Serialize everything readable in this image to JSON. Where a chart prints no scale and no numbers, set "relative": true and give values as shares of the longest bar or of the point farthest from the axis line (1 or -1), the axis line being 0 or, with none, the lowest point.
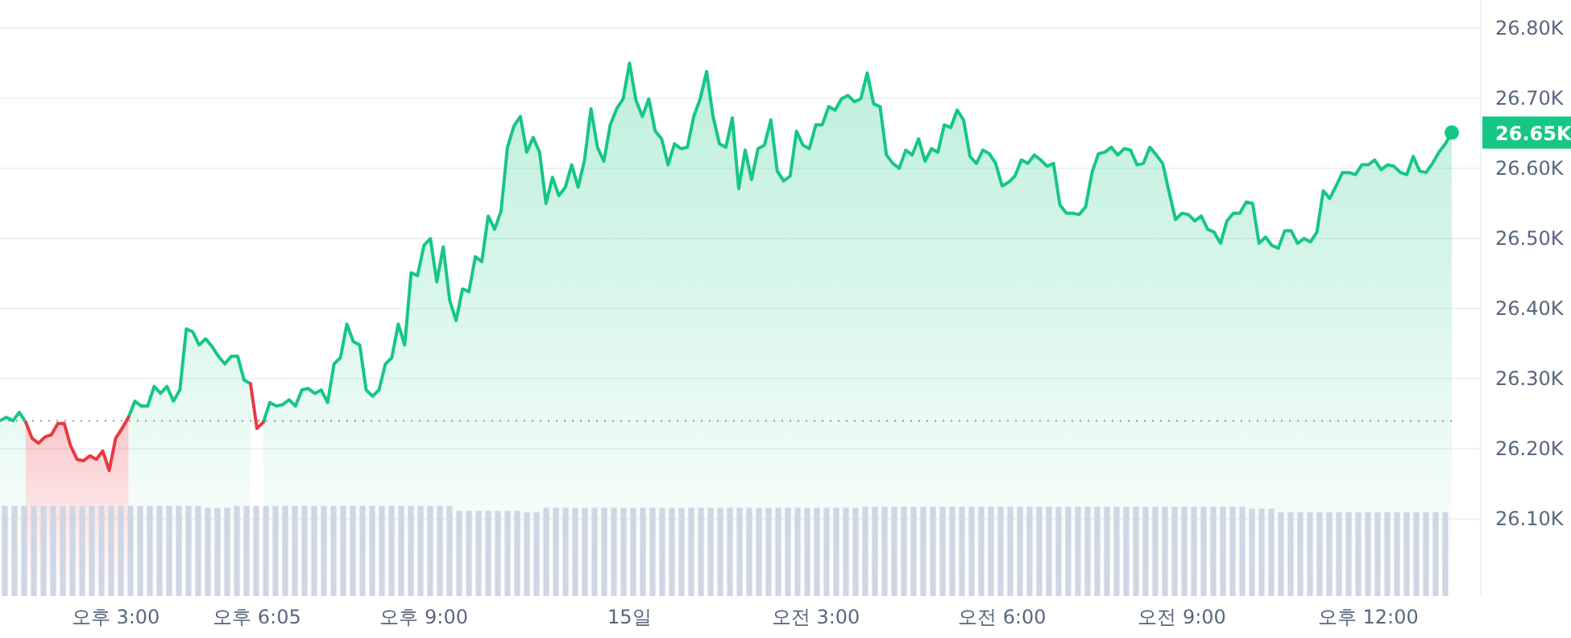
{
  "chart_data": [
    {
      "type": "line",
      "ylim": [
        25.99,
        26.84
      ],
      "categories": [
        null,
        null,
        null,
        null,
        null,
        null,
        null,
        null,
        null,
        null,
        null,
        null,
        null,
        null,
        null,
        null,
        null,
        null,
        "오후 3:00",
        null,
        null,
        null,
        null,
        null,
        null,
        null,
        null,
        null,
        null,
        null,
        null,
        null,
        null,
        null,
        null,
        null,
        null,
        null,
        null,
        null,
        "오후 6:05",
        null,
        null,
        null,
        null,
        null,
        null,
        null,
        null,
        null,
        null,
        null,
        null,
        null,
        null,
        null,
        null,
        null,
        null,
        null,
        null,
        null,
        null,
        null,
        null,
        null,
        "오후 9:00",
        null,
        null,
        null,
        null,
        null,
        null,
        null,
        null,
        null,
        null,
        null,
        null,
        null,
        null,
        null,
        null,
        null,
        null,
        null,
        null,
        null,
        null,
        null,
        null,
        null,
        null,
        null,
        null,
        null,
        null,
        null,
        "15일",
        null,
        null,
        null,
        null,
        null,
        null,
        null,
        null,
        null,
        null,
        null,
        null,
        null,
        null,
        null,
        null,
        null,
        null,
        null,
        null,
        null,
        null,
        null,
        null,
        null,
        null,
        null,
        null,
        "오전 3:00",
        null,
        null,
        null,
        null,
        null,
        null,
        null,
        null,
        null,
        null,
        null,
        null,
        null,
        null,
        null,
        null,
        null,
        null,
        null,
        null,
        null,
        null,
        null,
        null,
        null,
        null,
        null,
        null,
        "오전 6:00",
        null,
        null,
        null,
        null,
        null,
        null,
        null,
        null,
        null,
        null,
        null,
        null,
        null,
        null,
        null,
        null,
        null,
        null,
        null,
        null,
        null,
        null,
        null,
        null,
        null,
        null,
        null,
        "오전 9:00",
        null,
        null,
        null,
        null,
        null,
        null,
        null,
        null,
        null,
        null,
        null,
        null,
        null,
        null,
        null,
        null,
        null,
        null,
        null,
        null,
        null,
        null,
        null,
        null,
        null,
        null,
        null,
        null,
        "오후 12:00",
        null,
        null,
        null,
        null,
        null,
        null,
        null,
        null,
        null,
        null,
        null,
        null,
        null
      ],
      "yticks": [
        {
          "value": 26.1,
          "label": "26.10K"
        },
        {
          "value": 26.2,
          "label": "26.20K"
        },
        {
          "value": 26.3,
          "label": "26.30K"
        },
        {
          "value": 26.4,
          "label": "26.40K"
        },
        {
          "value": 26.5,
          "label": "26.50K"
        },
        {
          "value": 26.6,
          "label": "26.60K"
        },
        {
          "value": 26.7,
          "label": "26.70K"
        },
        {
          "value": 26.8,
          "label": "26.80K"
        }
      ],
      "grid": "y",
      "ref_lines": [
        {
          "axis": "y",
          "value": 26.24,
          "color": "#9aa1ad",
          "line_style": "dotted"
        }
      ],
      "annotations": [
        "26.65K"
      ],
      "series": [
        {
          "type": "area",
          "color": "#16c784",
          "values": [
            26.24,
            26.245,
            26.24,
            26.252,
            26.238,
            null,
            null,
            null,
            null,
            null,
            null,
            null,
            null,
            null,
            null,
            null,
            null,
            null,
            null,
            null,
            26.245,
            26.268,
            26.261,
            26.261,
            26.289,
            26.279,
            26.289,
            26.268,
            26.284,
            26.371,
            26.367,
            26.348,
            26.357,
            26.346,
            26.332,
            26.321,
            26.332,
            26.332,
            26.298,
            26.293,
            null,
            26.238,
            26.266,
            26.261,
            26.263,
            26.27,
            26.261,
            26.284,
            26.286,
            26.279,
            26.284,
            26.266,
            26.321,
            26.33,
            26.378,
            26.353,
            26.348,
            26.284,
            26.275,
            26.284,
            26.321,
            26.33,
            26.378,
            26.348,
            26.451,
            26.447,
            26.49,
            26.5,
            26.438,
            26.488,
            26.412,
            26.383,
            26.428,
            26.424,
            26.474,
            26.467,
            26.532,
            26.513,
            26.539,
            26.63,
            26.66,
            26.674,
            26.623,
            26.644,
            26.623,
            26.55,
            26.587,
            26.561,
            26.573,
            26.605,
            26.573,
            26.612,
            26.685,
            26.63,
            26.61,
            26.662,
            26.685,
            26.699,
            26.75,
            26.697,
            26.674,
            26.699,
            26.653,
            26.642,
            26.605,
            26.635,
            26.628,
            26.63,
            26.674,
            26.699,
            26.738,
            26.674,
            26.635,
            26.63,
            26.672,
            26.571,
            26.626,
            26.584,
            26.628,
            26.633,
            26.669,
            26.596,
            26.582,
            26.589,
            26.653,
            26.633,
            26.628,
            26.662,
            26.662,
            26.688,
            26.683,
            26.699,
            26.704,
            26.695,
            26.699,
            26.736,
            26.692,
            26.688,
            26.619,
            26.607,
            26.6,
            26.626,
            26.619,
            26.642,
            26.61,
            26.628,
            26.623,
            26.662,
            26.658,
            26.683,
            26.669,
            26.617,
            26.607,
            26.626,
            26.621,
            26.607,
            26.575,
            26.58,
            26.589,
            26.612,
            26.607,
            26.619,
            26.612,
            26.603,
            26.607,
            26.548,
            26.536,
            26.536,
            26.534,
            26.545,
            26.594,
            26.621,
            26.623,
            26.63,
            26.619,
            26.628,
            26.626,
            26.605,
            26.607,
            26.63,
            26.619,
            26.607,
            26.566,
            26.527,
            26.536,
            26.534,
            26.525,
            26.532,
            26.513,
            26.509,
            26.493,
            26.525,
            26.536,
            26.536,
            26.552,
            26.55,
            26.493,
            26.502,
            26.49,
            26.486,
            26.511,
            26.511,
            26.493,
            26.5,
            26.495,
            26.509,
            26.568,
            26.557,
            26.575,
            26.594,
            26.594,
            26.591,
            26.605,
            26.605,
            26.612,
            26.598,
            26.605,
            26.603,
            26.594,
            26.591,
            26.617,
            26.596,
            26.594,
            26.607,
            26.623,
            26.635,
            26.651
          ]
        },
        {
          "type": "area",
          "color": "#ea3943",
          "values": [
            null,
            null,
            null,
            null,
            26.238,
            26.215,
            26.208,
            26.217,
            26.22,
            26.236,
            26.236,
            26.204,
            26.185,
            26.183,
            26.19,
            26.185,
            26.197,
            26.169,
            26.215,
            26.229,
            26.245,
            null,
            null,
            null,
            null,
            null,
            null,
            null,
            null,
            null,
            null,
            null,
            null,
            null,
            null,
            null,
            null,
            null,
            null,
            null,
            null,
            null,
            null,
            null,
            null,
            null,
            null,
            null,
            null,
            null,
            null,
            null,
            null,
            null,
            null,
            null,
            null,
            null,
            null,
            null,
            null,
            null,
            null,
            null,
            null,
            null,
            null,
            null,
            null,
            null,
            null,
            null,
            null,
            null,
            null,
            null,
            null,
            null,
            null,
            null,
            null,
            null,
            null,
            null,
            null,
            null,
            null,
            null,
            null,
            null,
            null,
            null,
            null,
            null,
            null,
            null,
            null,
            null,
            null,
            null,
            null,
            null,
            null,
            null,
            null,
            null,
            null,
            null,
            null,
            null,
            null,
            null,
            null,
            null,
            null,
            null,
            null,
            null,
            null,
            null,
            null,
            null,
            null,
            null,
            null,
            null,
            null,
            null,
            null,
            null,
            null,
            null,
            null,
            null,
            null,
            null,
            null,
            null,
            null,
            null,
            null,
            null,
            null,
            null,
            null,
            null,
            null,
            null,
            null,
            null,
            null,
            null,
            null,
            null,
            null,
            null,
            null,
            null,
            null,
            null,
            null,
            null,
            null,
            null,
            null,
            null,
            null,
            null,
            null,
            null,
            null,
            null,
            null,
            null,
            null,
            null,
            null,
            null,
            null,
            null,
            null,
            null,
            null,
            null,
            null,
            null,
            null,
            null,
            null,
            null,
            null,
            null,
            null,
            null,
            null,
            null,
            null,
            null,
            null,
            null,
            null,
            null,
            null,
            null,
            null,
            null,
            null,
            null,
            null,
            null,
            null,
            null,
            null,
            null,
            null,
            null,
            null,
            null,
            null,
            null,
            null,
            null,
            null,
            null,
            null,
            null,
            null
          ]
        },
        {
          "type": "line",
          "color": "#ea3943",
          "values": [
            null,
            null,
            null,
            null,
            null,
            null,
            null,
            null,
            null,
            null,
            null,
            null,
            null,
            null,
            null,
            null,
            null,
            null,
            null,
            null,
            null,
            null,
            null,
            null,
            null,
            null,
            null,
            null,
            null,
            null,
            null,
            null,
            null,
            null,
            null,
            null,
            null,
            null,
            null,
            26.293,
            26.229,
            26.238,
            null,
            null,
            null,
            null,
            null,
            null,
            null,
            null,
            null,
            null,
            null,
            null,
            null,
            null,
            null,
            null,
            null,
            null,
            null,
            null,
            null,
            null,
            null,
            null,
            null,
            null,
            null,
            null,
            null,
            null,
            null,
            null,
            null,
            null,
            null,
            null,
            null,
            null,
            null,
            null,
            null,
            null,
            null,
            null,
            null,
            null,
            null,
            null,
            null,
            null,
            null,
            null,
            null,
            null,
            null,
            null,
            null,
            null,
            null,
            null,
            null,
            null,
            null,
            null,
            null,
            null,
            null,
            null,
            null,
            null,
            null,
            null,
            null,
            null,
            null,
            null,
            null,
            null,
            null,
            null,
            null,
            null,
            null,
            null,
            null,
            null,
            null,
            null,
            null,
            null,
            null,
            null,
            null,
            null,
            null,
            null,
            null,
            null,
            null,
            null,
            null,
            null,
            null,
            null,
            null,
            null,
            null,
            null,
            null,
            null,
            null,
            null,
            null,
            null,
            null,
            null,
            null,
            null,
            null,
            null,
            null,
            null,
            null,
            null,
            null,
            null,
            null,
            null,
            null,
            null,
            null,
            null,
            null,
            null,
            null,
            null,
            null,
            null,
            null,
            null,
            null,
            null,
            null,
            null,
            null,
            null,
            null,
            null,
            null,
            null,
            null,
            null,
            null,
            null,
            null,
            null,
            null,
            null,
            null,
            null,
            null,
            null,
            null,
            null,
            null,
            null,
            null,
            null,
            null,
            null,
            null,
            null,
            null,
            null,
            null,
            null,
            null,
            null,
            null,
            null,
            null,
            null,
            null,
            null,
            null
          ]
        }
      ]
    },
    {
      "type": "bar",
      "relative": true,
      "color": "#cfd6e4",
      "categories": [
        null,
        null,
        null,
        null,
        null,
        null,
        null,
        null,
        null,
        null,
        null,
        null,
        null,
        null,
        null,
        null,
        null,
        null,
        null,
        null,
        null,
        null,
        null,
        null,
        null,
        null,
        null,
        null,
        null,
        null,
        null,
        null,
        null,
        null,
        null,
        null,
        null,
        null,
        null,
        null,
        null,
        null,
        null,
        null,
        null,
        null,
        null,
        null,
        null,
        null,
        null,
        null,
        null,
        null,
        null,
        null,
        null,
        null,
        null,
        null,
        null,
        null,
        null,
        null,
        null,
        null,
        null,
        null,
        null,
        null,
        null,
        null,
        null,
        null,
        null,
        null,
        null,
        null,
        null,
        null,
        null,
        null,
        null,
        null,
        null,
        null,
        null,
        null,
        null,
        null,
        null,
        null,
        null,
        null,
        null,
        null,
        null,
        null,
        null,
        null,
        null,
        null,
        null,
        null,
        null,
        null,
        null,
        null,
        null,
        null,
        null,
        null,
        null,
        null,
        null,
        null,
        null,
        null,
        null,
        null,
        null,
        null,
        null,
        null,
        null,
        null,
        null,
        null,
        null,
        null,
        null,
        null,
        null,
        null,
        null,
        null,
        null,
        null,
        null,
        null,
        null,
        null,
        null,
        null,
        null,
        null,
        null,
        null,
        null,
        null
      ],
      "values": [
        1,
        1,
        1,
        1,
        1,
        1,
        1,
        1,
        1,
        1,
        1,
        1,
        1,
        1,
        1,
        1,
        1,
        1,
        1,
        1,
        1,
        0.98,
        0.98,
        0.98,
        1,
        1,
        1,
        1,
        1,
        1,
        1,
        1,
        1,
        1,
        1,
        1,
        1,
        1,
        1,
        1,
        1,
        1,
        1,
        1,
        1,
        1,
        1,
        0.945,
        0.945,
        0.945,
        0.945,
        0.945,
        0.945,
        0.945,
        0.93,
        0.93,
        0.98,
        0.98,
        0.98,
        0.98,
        0.98,
        0.98,
        0.98,
        0.98,
        0.98,
        0.98,
        0.98,
        0.98,
        0.98,
        0.98,
        0.98,
        0.98,
        0.98,
        0.98,
        0.98,
        0.98,
        0.98,
        0.98,
        0.98,
        0.98,
        0.98,
        0.98,
        0.98,
        0.98,
        0.98,
        0.98,
        0.98,
        0.98,
        0.98,
        0.99,
        0.99,
        0.99,
        0.99,
        0.99,
        0.99,
        0.99,
        0.99,
        0.99,
        0.99,
        0.99,
        0.99,
        0.99,
        0.99,
        0.99,
        0.99,
        0.99,
        0.99,
        0.99,
        0.99,
        0.99,
        0.99,
        0.99,
        0.99,
        0.99,
        0.99,
        0.99,
        0.99,
        0.99,
        0.99,
        0.99,
        0.99,
        0.99,
        0.99,
        0.99,
        0.99,
        0.99,
        0.99,
        0.99,
        0.99,
        0.97,
        0.97,
        0.97,
        0.93,
        0.93,
        0.93,
        0.93,
        0.93,
        0.93,
        0.93,
        0.93,
        0.93,
        0.93,
        0.93,
        0.93,
        0.93,
        0.93,
        0.93,
        0.93,
        0.93,
        0.93
      ]
    }
  ]
}
